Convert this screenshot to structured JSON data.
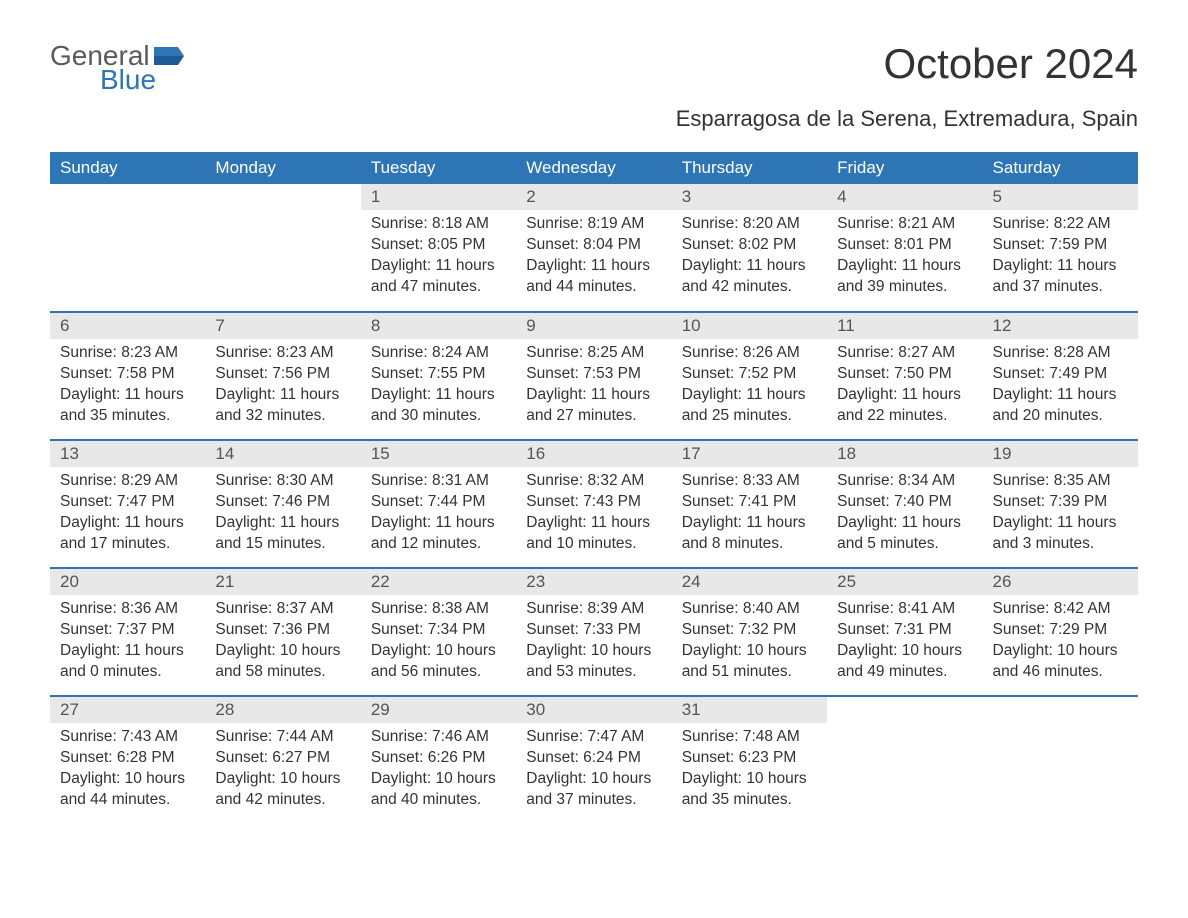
{
  "logo": {
    "word1": "General",
    "word2": "Blue",
    "icon_color": "#2e75b6"
  },
  "title": "October 2024",
  "location": "Esparragosa de la Serena, Extremadura, Spain",
  "colors": {
    "header_bg": "#2e75b6",
    "header_text": "#ffffff",
    "daynum_bg": "#e8e8e8",
    "row_border": "#2e75b6",
    "body_text": "#333333"
  },
  "day_headers": [
    "Sunday",
    "Monday",
    "Tuesday",
    "Wednesday",
    "Thursday",
    "Friday",
    "Saturday"
  ],
  "label": {
    "sunrise": "Sunrise:",
    "sunset": "Sunset:",
    "daylight": "Daylight:"
  },
  "weeks": [
    [
      null,
      null,
      {
        "n": "1",
        "sunrise": "8:18 AM",
        "sunset": "8:05 PM",
        "daylight": "11 hours and 47 minutes."
      },
      {
        "n": "2",
        "sunrise": "8:19 AM",
        "sunset": "8:04 PM",
        "daylight": "11 hours and 44 minutes."
      },
      {
        "n": "3",
        "sunrise": "8:20 AM",
        "sunset": "8:02 PM",
        "daylight": "11 hours and 42 minutes."
      },
      {
        "n": "4",
        "sunrise": "8:21 AM",
        "sunset": "8:01 PM",
        "daylight": "11 hours and 39 minutes."
      },
      {
        "n": "5",
        "sunrise": "8:22 AM",
        "sunset": "7:59 PM",
        "daylight": "11 hours and 37 minutes."
      }
    ],
    [
      {
        "n": "6",
        "sunrise": "8:23 AM",
        "sunset": "7:58 PM",
        "daylight": "11 hours and 35 minutes."
      },
      {
        "n": "7",
        "sunrise": "8:23 AM",
        "sunset": "7:56 PM",
        "daylight": "11 hours and 32 minutes."
      },
      {
        "n": "8",
        "sunrise": "8:24 AM",
        "sunset": "7:55 PM",
        "daylight": "11 hours and 30 minutes."
      },
      {
        "n": "9",
        "sunrise": "8:25 AM",
        "sunset": "7:53 PM",
        "daylight": "11 hours and 27 minutes."
      },
      {
        "n": "10",
        "sunrise": "8:26 AM",
        "sunset": "7:52 PM",
        "daylight": "11 hours and 25 minutes."
      },
      {
        "n": "11",
        "sunrise": "8:27 AM",
        "sunset": "7:50 PM",
        "daylight": "11 hours and 22 minutes."
      },
      {
        "n": "12",
        "sunrise": "8:28 AM",
        "sunset": "7:49 PM",
        "daylight": "11 hours and 20 minutes."
      }
    ],
    [
      {
        "n": "13",
        "sunrise": "8:29 AM",
        "sunset": "7:47 PM",
        "daylight": "11 hours and 17 minutes."
      },
      {
        "n": "14",
        "sunrise": "8:30 AM",
        "sunset": "7:46 PM",
        "daylight": "11 hours and 15 minutes."
      },
      {
        "n": "15",
        "sunrise": "8:31 AM",
        "sunset": "7:44 PM",
        "daylight": "11 hours and 12 minutes."
      },
      {
        "n": "16",
        "sunrise": "8:32 AM",
        "sunset": "7:43 PM",
        "daylight": "11 hours and 10 minutes."
      },
      {
        "n": "17",
        "sunrise": "8:33 AM",
        "sunset": "7:41 PM",
        "daylight": "11 hours and 8 minutes."
      },
      {
        "n": "18",
        "sunrise": "8:34 AM",
        "sunset": "7:40 PM",
        "daylight": "11 hours and 5 minutes."
      },
      {
        "n": "19",
        "sunrise": "8:35 AM",
        "sunset": "7:39 PM",
        "daylight": "11 hours and 3 minutes."
      }
    ],
    [
      {
        "n": "20",
        "sunrise": "8:36 AM",
        "sunset": "7:37 PM",
        "daylight": "11 hours and 0 minutes."
      },
      {
        "n": "21",
        "sunrise": "8:37 AM",
        "sunset": "7:36 PM",
        "daylight": "10 hours and 58 minutes."
      },
      {
        "n": "22",
        "sunrise": "8:38 AM",
        "sunset": "7:34 PM",
        "daylight": "10 hours and 56 minutes."
      },
      {
        "n": "23",
        "sunrise": "8:39 AM",
        "sunset": "7:33 PM",
        "daylight": "10 hours and 53 minutes."
      },
      {
        "n": "24",
        "sunrise": "8:40 AM",
        "sunset": "7:32 PM",
        "daylight": "10 hours and 51 minutes."
      },
      {
        "n": "25",
        "sunrise": "8:41 AM",
        "sunset": "7:31 PM",
        "daylight": "10 hours and 49 minutes."
      },
      {
        "n": "26",
        "sunrise": "8:42 AM",
        "sunset": "7:29 PM",
        "daylight": "10 hours and 46 minutes."
      }
    ],
    [
      {
        "n": "27",
        "sunrise": "7:43 AM",
        "sunset": "6:28 PM",
        "daylight": "10 hours and 44 minutes."
      },
      {
        "n": "28",
        "sunrise": "7:44 AM",
        "sunset": "6:27 PM",
        "daylight": "10 hours and 42 minutes."
      },
      {
        "n": "29",
        "sunrise": "7:46 AM",
        "sunset": "6:26 PM",
        "daylight": "10 hours and 40 minutes."
      },
      {
        "n": "30",
        "sunrise": "7:47 AM",
        "sunset": "6:24 PM",
        "daylight": "10 hours and 37 minutes."
      },
      {
        "n": "31",
        "sunrise": "7:48 AM",
        "sunset": "6:23 PM",
        "daylight": "10 hours and 35 minutes."
      },
      null,
      null
    ]
  ]
}
